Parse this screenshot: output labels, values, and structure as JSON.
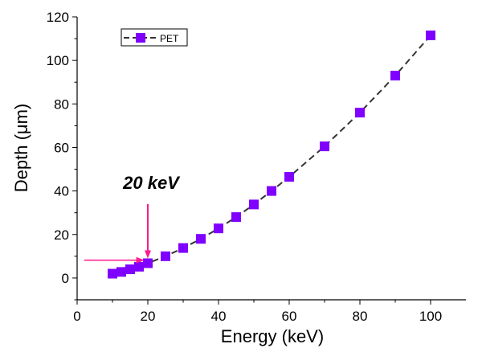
{
  "chart_data": {
    "type": "line",
    "xlabel": "Energy (keV)",
    "ylabel": "Depth (μm)",
    "xlim": [
      0,
      110
    ],
    "ylim": [
      -10,
      120
    ],
    "xticks": [
      "0",
      "20",
      "40",
      "60",
      "80",
      "100"
    ],
    "yticks": [
      "0",
      "20",
      "40",
      "60",
      "80",
      "100",
      "120"
    ],
    "grid": false,
    "legend_position": "top-left",
    "series": [
      {
        "name": "PET",
        "color": "#8000ff",
        "line_style": "dashed",
        "marker": "square",
        "x": [
          10,
          12.5,
          15,
          17.5,
          20,
          25,
          30,
          35,
          40,
          45,
          50,
          55,
          60,
          70,
          80,
          90,
          100
        ],
        "y": [
          2,
          2.8,
          4,
          5.2,
          6.8,
          10,
          13.8,
          18,
          22.8,
          28,
          33.8,
          40,
          46.5,
          60.5,
          76,
          93,
          111.5
        ]
      }
    ],
    "annotations": [
      {
        "text": "20 keV",
        "color": "#ff1a8c",
        "vertical_arrow_x": 20,
        "vertical_arrow_from_y": 34,
        "vertical_arrow_to_y": 9,
        "horizontal_arrow_y": 8.2,
        "horizontal_arrow_from_x": 2,
        "horizontal_arrow_to_x": 19
      }
    ]
  }
}
